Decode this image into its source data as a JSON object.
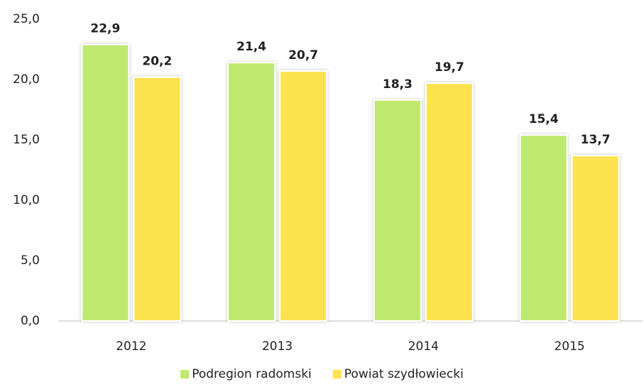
{
  "chart_data": {
    "type": "bar",
    "categories": [
      "2012",
      "2013",
      "2014",
      "2015"
    ],
    "series": [
      {
        "name": "Podregion radomski",
        "color": "#bfe96e",
        "values": [
          22.9,
          21.4,
          18.3,
          15.4
        ],
        "value_labels": [
          "22,9",
          "21,4",
          "18,3",
          "15,4"
        ]
      },
      {
        "name": "Powiat szydłowiecki",
        "color": "#fde24f",
        "values": [
          20.2,
          20.7,
          19.7,
          13.7
        ],
        "value_labels": [
          "20,2",
          "20,7",
          "19,7",
          "13,7"
        ]
      }
    ],
    "ylim": [
      0,
      25
    ],
    "yticks": [
      {
        "value": 0,
        "label": "0,0"
      },
      {
        "value": 5,
        "label": "5,0"
      },
      {
        "value": 10,
        "label": "10,0"
      },
      {
        "value": 15,
        "label": "15,0"
      },
      {
        "value": 20,
        "label": "20,0"
      },
      {
        "value": 25,
        "label": "25,0"
      }
    ],
    "grid": false,
    "legend": "bottom"
  }
}
